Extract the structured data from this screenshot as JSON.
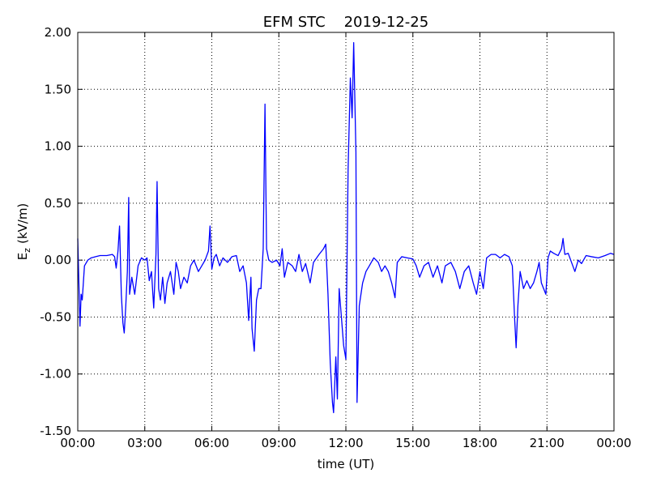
{
  "chart_data": {
    "type": "line",
    "title": "EFM STC    2019-12-25",
    "xlabel": "time (UT)",
    "ylabel": {
      "main": "E",
      "sub": "z",
      "unit": "(kV/m)"
    },
    "color": "#0000ff",
    "grid": true,
    "xlim": [
      0,
      24
    ],
    "xticks": [
      {
        "value": 0,
        "label": "00:00"
      },
      {
        "value": 3,
        "label": "03:00"
      },
      {
        "value": 6,
        "label": "06:00"
      },
      {
        "value": 9,
        "label": "09:00"
      },
      {
        "value": 12,
        "label": "12:00"
      },
      {
        "value": 15,
        "label": "15:00"
      },
      {
        "value": 18,
        "label": "18:00"
      },
      {
        "value": 21,
        "label": "21:00"
      },
      {
        "value": 24,
        "label": "00:00"
      }
    ],
    "ylim": [
      -1.5,
      2
    ],
    "yticks": [
      {
        "value": -1.5,
        "label": "-1.50"
      },
      {
        "value": -1,
        "label": "-1.00"
      },
      {
        "value": -0.5,
        "label": "-0.50"
      },
      {
        "value": 0,
        "label": "0.00"
      },
      {
        "value": 0.5,
        "label": "0.50"
      },
      {
        "value": 1,
        "label": "1.00"
      },
      {
        "value": 1.5,
        "label": "1.50"
      },
      {
        "value": 2,
        "label": "2.00"
      }
    ],
    "x": [
      0,
      0.05,
      0.1,
      0.15,
      0.2,
      0.3,
      0.45,
      0.6,
      0.8,
      1.0,
      1.3,
      1.55,
      1.65,
      1.72,
      1.8,
      1.87,
      1.95,
      2.02,
      2.08,
      2.15,
      2.22,
      2.28,
      2.32,
      2.42,
      2.55,
      2.7,
      2.85,
      3.0,
      3.1,
      3.2,
      3.3,
      3.4,
      3.5,
      3.55,
      3.62,
      3.7,
      3.8,
      3.9,
      4.0,
      4.15,
      4.3,
      4.4,
      4.5,
      4.6,
      4.75,
      4.9,
      5.05,
      5.2,
      5.4,
      5.55,
      5.7,
      5.85,
      5.92,
      6.0,
      6.1,
      6.2,
      6.35,
      6.5,
      6.7,
      6.9,
      7.1,
      7.25,
      7.4,
      7.55,
      7.65,
      7.75,
      7.8,
      7.9,
      8.0,
      8.1,
      8.2,
      8.3,
      8.38,
      8.45,
      8.55,
      8.7,
      8.9,
      9.05,
      9.15,
      9.25,
      9.4,
      9.6,
      9.75,
      9.9,
      10.05,
      10.2,
      10.4,
      10.55,
      10.8,
      11.0,
      11.1,
      11.2,
      11.3,
      11.4,
      11.45,
      11.55,
      11.62,
      11.7,
      11.8,
      11.9,
      12.0,
      12.1,
      12.2,
      12.28,
      12.35,
      12.45,
      12.5,
      12.6,
      12.75,
      12.9,
      13.05,
      13.25,
      13.45,
      13.6,
      13.75,
      13.9,
      14.05,
      14.2,
      14.3,
      14.5,
      14.75,
      15.0,
      15.15,
      15.3,
      15.5,
      15.7,
      15.9,
      16.1,
      16.3,
      16.45,
      16.7,
      16.9,
      17.1,
      17.3,
      17.5,
      17.7,
      17.85,
      18.0,
      18.15,
      18.3,
      18.5,
      18.7,
      18.9,
      19.1,
      19.3,
      19.45,
      19.55,
      19.62,
      19.7,
      19.8,
      19.95,
      20.1,
      20.25,
      20.4,
      20.55,
      20.65,
      20.75,
      20.85,
      20.95,
      21.05,
      21.15,
      21.3,
      21.5,
      21.65,
      21.72,
      21.8,
      21.95,
      22.1,
      22.25,
      22.4,
      22.55,
      22.75,
      23.0,
      23.3,
      23.6,
      23.85,
      24.0
    ],
    "values": [
      0.19,
      -0.2,
      -0.58,
      -0.3,
      -0.35,
      -0.05,
      0.0,
      0.02,
      0.03,
      0.04,
      0.04,
      0.05,
      0.03,
      -0.07,
      0.08,
      0.3,
      -0.3,
      -0.55,
      -0.64,
      -0.4,
      -0.1,
      0.55,
      -0.3,
      -0.15,
      -0.3,
      -0.05,
      0.02,
      0.0,
      0.02,
      -0.18,
      -0.1,
      -0.42,
      0.05,
      0.69,
      -0.25,
      -0.35,
      -0.15,
      -0.38,
      -0.2,
      -0.1,
      -0.3,
      -0.02,
      -0.1,
      -0.25,
      -0.15,
      -0.2,
      -0.05,
      0.0,
      -0.1,
      -0.05,
      0.0,
      0.08,
      0.3,
      -0.08,
      0.02,
      0.05,
      -0.05,
      0.02,
      -0.02,
      0.03,
      0.04,
      -0.1,
      -0.05,
      -0.2,
      -0.53,
      -0.15,
      -0.6,
      -0.8,
      -0.35,
      -0.25,
      -0.25,
      0.1,
      1.37,
      0.1,
      0.0,
      -0.02,
      0.0,
      -0.05,
      0.1,
      -0.15,
      -0.02,
      -0.05,
      -0.1,
      0.05,
      -0.1,
      -0.03,
      -0.2,
      -0.02,
      0.05,
      0.1,
      0.14,
      -0.3,
      -0.9,
      -1.25,
      -1.34,
      -0.85,
      -1.22,
      -0.25,
      -0.5,
      -0.75,
      -0.87,
      0.8,
      1.6,
      1.25,
      1.91,
      0.95,
      -1.25,
      -0.4,
      -0.2,
      -0.1,
      -0.05,
      0.02,
      -0.02,
      -0.1,
      -0.05,
      -0.1,
      -0.2,
      -0.33,
      -0.02,
      0.03,
      0.02,
      0.01,
      -0.05,
      -0.15,
      -0.05,
      -0.02,
      -0.15,
      -0.05,
      -0.2,
      -0.05,
      -0.02,
      -0.1,
      -0.25,
      -0.1,
      -0.05,
      -0.2,
      -0.3,
      -0.1,
      -0.25,
      0.02,
      0.05,
      0.05,
      0.02,
      0.05,
      0.03,
      -0.05,
      -0.5,
      -0.77,
      -0.4,
      -0.1,
      -0.25,
      -0.18,
      -0.25,
      -0.2,
      -0.1,
      -0.02,
      -0.2,
      -0.25,
      -0.3,
      0.02,
      0.08,
      0.06,
      0.04,
      0.1,
      0.19,
      0.05,
      0.06,
      -0.02,
      -0.1,
      0.0,
      -0.03,
      0.04,
      0.03,
      0.02,
      0.04,
      0.06,
      0.05
    ]
  }
}
